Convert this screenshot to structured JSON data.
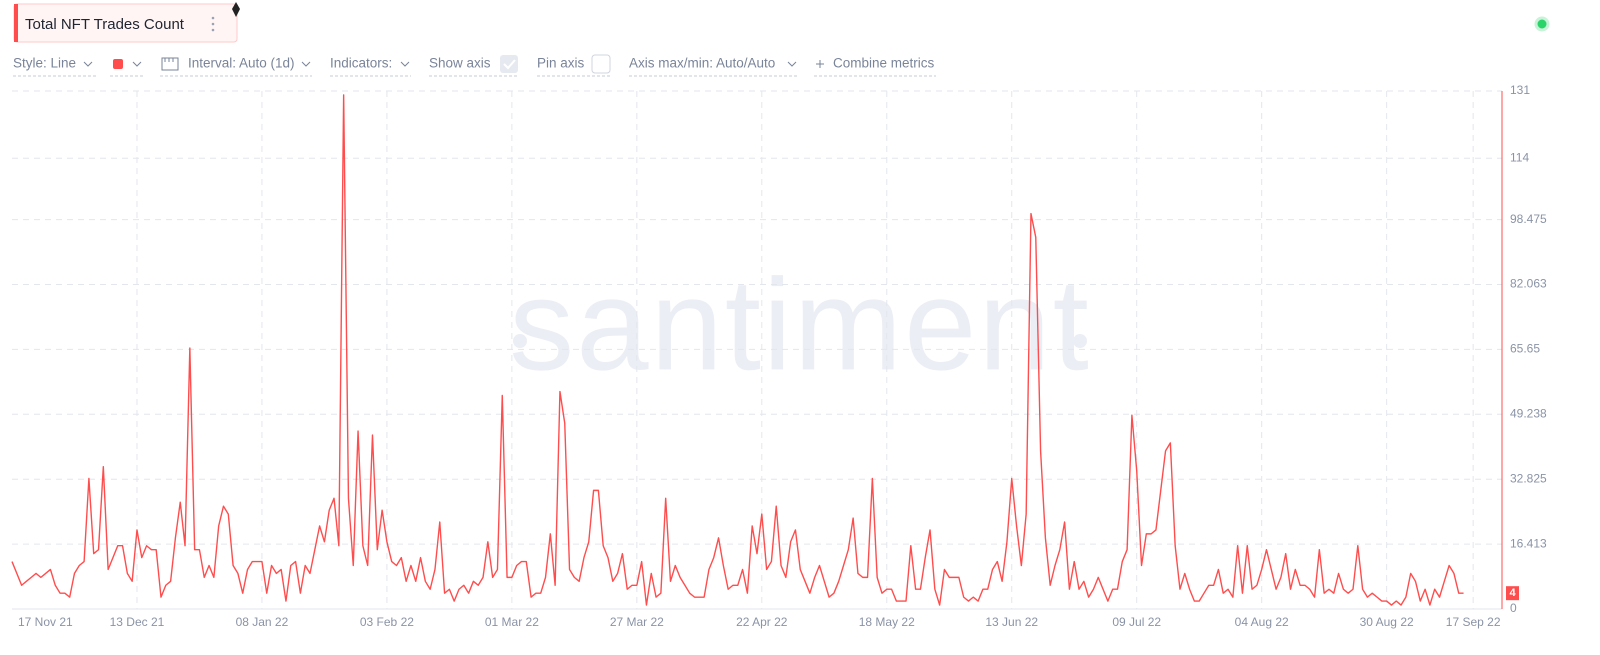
{
  "toolbar": {
    "style": "Style: Line",
    "interval": "Interval: Auto (1d)",
    "indicators": "Indicators:",
    "show_axis": "Show axis",
    "pin_axis": "Pin axis",
    "axis_range": "Axis max/min: Auto/Auto",
    "combine": "Combine metrics"
  },
  "watermark": "santiment",
  "chart_data": {
    "type": "line",
    "title": "Total NFT Trades Count",
    "color": "#ff4d4d",
    "grid": true,
    "xlim": [
      0,
      310
    ],
    "xticks": [
      {
        "value": 0,
        "label": "17 Nov 21"
      },
      {
        "value": 26,
        "label": "13 Dec 21"
      },
      {
        "value": 52,
        "label": "08 Jan 22"
      },
      {
        "value": 78,
        "label": "03 Feb 22"
      },
      {
        "value": 104,
        "label": "01 Mar 22"
      },
      {
        "value": 130,
        "label": "27 Mar 22"
      },
      {
        "value": 156,
        "label": "22 Apr 22"
      },
      {
        "value": 182,
        "label": "18 May 22"
      },
      {
        "value": 208,
        "label": "13 Jun 22"
      },
      {
        "value": 234,
        "label": "09 Jul 22"
      },
      {
        "value": 260,
        "label": "04 Aug 22"
      },
      {
        "value": 286,
        "label": "30 Aug 22"
      },
      {
        "value": 304,
        "label": "17 Sep 22"
      }
    ],
    "ylim": [
      0,
      131
    ],
    "yticks": [
      0,
      16.413,
      32.825,
      49.238,
      65.65,
      82.063,
      98.475,
      114,
      131
    ],
    "values": [
      12,
      9,
      6,
      7,
      8,
      9,
      8,
      9,
      10,
      6,
      4,
      4,
      3,
      9,
      11,
      12,
      33,
      14,
      15,
      36,
      10,
      13,
      16,
      16,
      9,
      7,
      20,
      13,
      16,
      15,
      15,
      3,
      6,
      7,
      18,
      27,
      16,
      66,
      15,
      15,
      8,
      11,
      8,
      21,
      26,
      24,
      11,
      9,
      4,
      10,
      12,
      12,
      12,
      4,
      11,
      9,
      10,
      2,
      11,
      12,
      4,
      11,
      9,
      15,
      21,
      17,
      25,
      28,
      16,
      130,
      28,
      11,
      45,
      16,
      11,
      44,
      15,
      25,
      17,
      12,
      11,
      13,
      7,
      11,
      7,
      13,
      7,
      5,
      10,
      22,
      4,
      5,
      2,
      5,
      6,
      4,
      7,
      6,
      8,
      17,
      8,
      10,
      54,
      8,
      8,
      11,
      12,
      12,
      3,
      4,
      4,
      8,
      19,
      6,
      55,
      47,
      10,
      8,
      7,
      13,
      17,
      30,
      30,
      16,
      13,
      7,
      9,
      14,
      5,
      6,
      6,
      12,
      1,
      9,
      3,
      4,
      28,
      7,
      11,
      8,
      6,
      4,
      3,
      3,
      3,
      10,
      13,
      18,
      11,
      5,
      6,
      6,
      10,
      4,
      21,
      14,
      24,
      10,
      12,
      26,
      11,
      8,
      17,
      20,
      10,
      7,
      4,
      8,
      11,
      7,
      3,
      4,
      7,
      11,
      15,
      23,
      9,
      8,
      8,
      33,
      8,
      4,
      5,
      5,
      2,
      2,
      2,
      16,
      5,
      5,
      13,
      20,
      5,
      1,
      10,
      8,
      8,
      8,
      3,
      2,
      3,
      2,
      5,
      5,
      10,
      12,
      7,
      17,
      33,
      21,
      11,
      24,
      100,
      94,
      40,
      18,
      6,
      11,
      15,
      22,
      5,
      12,
      5,
      7,
      3,
      5,
      8,
      5,
      2,
      5,
      5,
      12,
      15,
      49,
      35,
      11,
      19,
      19,
      20,
      30,
      40,
      42,
      16,
      5,
      9,
      5,
      2,
      2,
      4,
      6,
      6,
      10,
      4,
      5,
      3,
      16,
      4,
      16,
      5,
      6,
      10,
      15,
      10,
      5,
      8,
      14,
      5,
      10,
      6,
      6,
      5,
      3,
      15,
      4,
      5,
      4,
      9,
      5,
      4,
      5,
      16,
      5,
      3,
      4,
      3,
      2,
      2,
      1,
      2,
      1,
      3,
      9,
      7,
      2,
      5,
      1,
      5,
      3,
      7,
      11,
      9,
      4,
      4
    ]
  }
}
